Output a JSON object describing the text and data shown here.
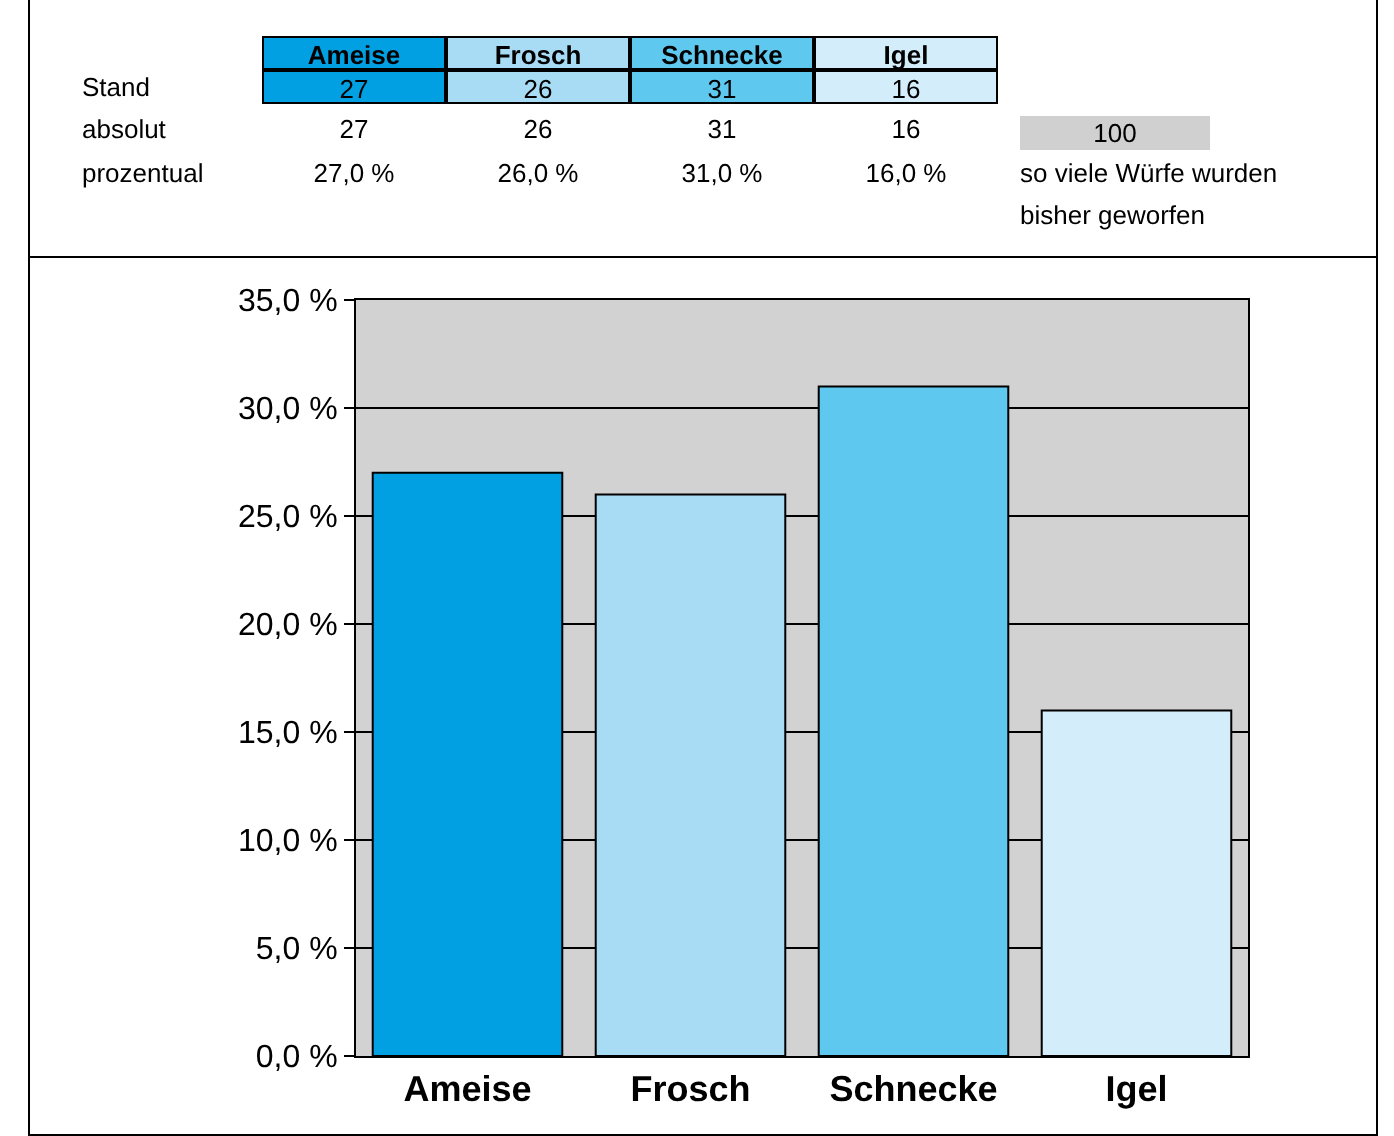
{
  "chart_data": {
    "type": "bar",
    "categories": [
      "Ameise",
      "Frosch",
      "Schnecke",
      "Igel"
    ],
    "values": [
      27,
      26,
      31,
      16
    ],
    "colors": [
      "#00a0e3",
      "#a8dcf5",
      "#5ec8ef",
      "#d4edfb"
    ],
    "ylim": [
      0,
      35
    ],
    "yticks": [
      {
        "value": 0,
        "label": "0,0 %"
      },
      {
        "value": 5,
        "label": "5,0 %"
      },
      {
        "value": 10,
        "label": "10,0 %"
      },
      {
        "value": 15,
        "label": "15,0 %"
      },
      {
        "value": 20,
        "label": "20,0 %"
      },
      {
        "value": 25,
        "label": "25,0 %"
      },
      {
        "value": 30,
        "label": "30,0 %"
      },
      {
        "value": 35,
        "label": "35,0 %"
      }
    ],
    "grid": "y",
    "annotations": [
      "Stand",
      "27",
      "26",
      "31",
      "16",
      "absolut",
      "27",
      "26",
      "31",
      "16",
      "prozentual",
      "27,0 %",
      "26,0 %",
      "31,0 %",
      "16,0 %",
      "100",
      "so viele Würfe wurden bisher geworfen"
    ]
  }
}
